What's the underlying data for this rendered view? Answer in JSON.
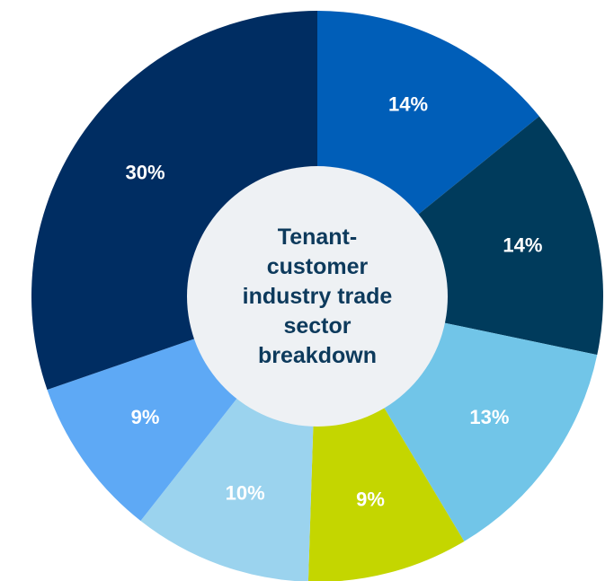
{
  "chart_data": {
    "type": "donut",
    "title": "Tenant-customer industry trade sector breakdown",
    "values": [
      14,
      14,
      13,
      9,
      10,
      9,
      30
    ],
    "value_labels": [
      "14%",
      "14%",
      "13%",
      "9%",
      "10%",
      "9%",
      "30%"
    ],
    "colors": [
      "#005eb8",
      "#003b5c",
      "#71c5e8",
      "#c4d600",
      "#9bd3ee",
      "#5ea9f5",
      "#002d62"
    ]
  }
}
